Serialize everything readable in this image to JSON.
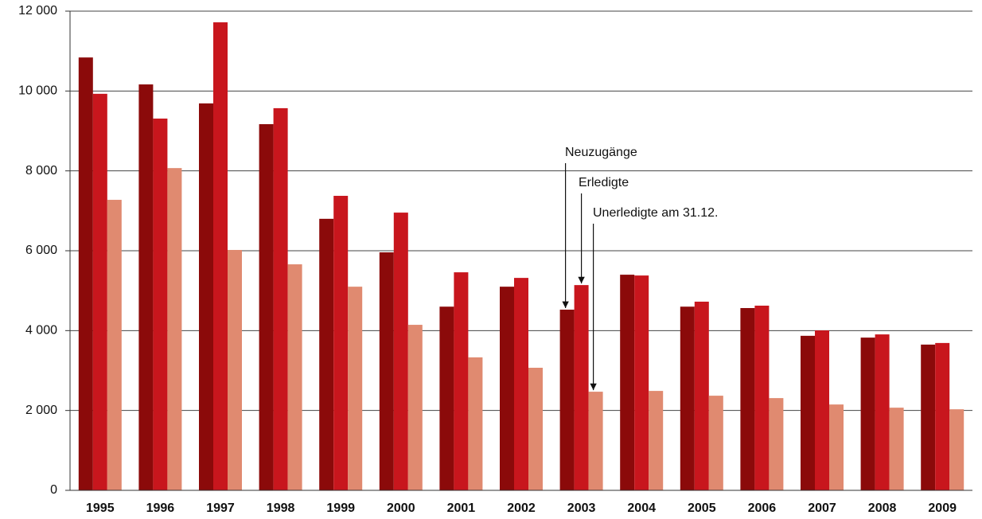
{
  "chart_data": {
    "type": "bar",
    "categories": [
      "1995",
      "1996",
      "1997",
      "1998",
      "1999",
      "2000",
      "2001",
      "2002",
      "2003",
      "2004",
      "2005",
      "2006",
      "2007",
      "2008",
      "2009"
    ],
    "series": [
      {
        "name": "Neuzugänge",
        "color": "#8b0a0a",
        "values": [
          10840,
          10165,
          9690,
          9170,
          6800,
          5960,
          4600,
          5100,
          4525,
          5400,
          4600,
          4565,
          3870,
          3825,
          3650
        ]
      },
      {
        "name": "Erledigte",
        "color": "#c8161d",
        "values": [
          9930,
          9310,
          11720,
          9570,
          7375,
          6955,
          5460,
          5320,
          5140,
          5380,
          4725,
          4625,
          4005,
          3905,
          3690
        ]
      },
      {
        "name": "Unerledigte am 31.12.",
        "color": "#e08a70",
        "values": [
          7275,
          8070,
          6020,
          5660,
          5100,
          4145,
          3330,
          3070,
          2470,
          2490,
          2370,
          2310,
          2150,
          2070,
          2030
        ]
      }
    ],
    "ylim": [
      0,
      12000
    ],
    "yticks": [
      0,
      {
        "value": 2000,
        "label": "2 000"
      },
      {
        "value": 4000,
        "label": "4 000"
      },
      {
        "value": 6000,
        "label": "6 000"
      },
      {
        "value": 8000,
        "label": "8 000"
      },
      {
        "value": 10000,
        "label": "10 000"
      },
      {
        "value": 12000,
        "label": "12 000"
      }
    ],
    "grid": true
  }
}
